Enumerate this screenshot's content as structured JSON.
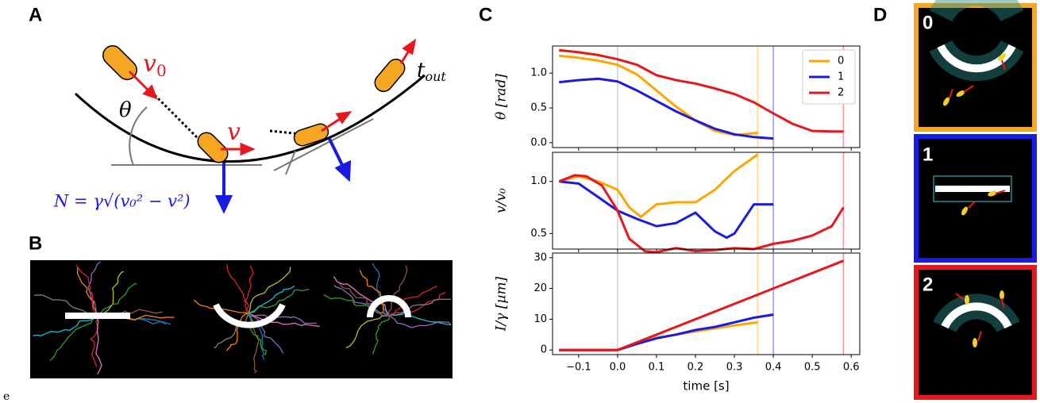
{
  "panels": {
    "A": {
      "letter": "A",
      "v0": {
        "base": "v",
        "sub": "0"
      },
      "theta": "θ",
      "v": "v",
      "tout": {
        "base": "t",
        "sub": "out"
      },
      "normal_force": "N = γ√(v₀² − v²)"
    },
    "B": {
      "letter": "B"
    },
    "C": {
      "letter": "C"
    },
    "D": {
      "letter": "D",
      "labels": [
        "0",
        "1",
        "2"
      ]
    }
  },
  "chart_data": [
    {
      "type": "line",
      "ylabel": "θ [rad]",
      "legend": "upper right",
      "xlim": [
        -0.167,
        0.622
      ],
      "ylim": [
        -0.07,
        1.39
      ],
      "yticks": [
        {
          "value": 0,
          "label": "0.0"
        },
        {
          "value": 0.5,
          "label": "0.5"
        },
        {
          "value": 1,
          "label": "1.0"
        }
      ],
      "vlines": [
        {
          "value": 0,
          "color": "#999999"
        },
        {
          "value": 0.36,
          "color": "#ffa500"
        },
        {
          "value": 0.4,
          "color": "#1a1ae6"
        },
        {
          "value": 0.58,
          "color": "#e6181e"
        }
      ],
      "series": [
        {
          "name": "0",
          "color": "#ffa500",
          "x": [
            -0.15,
            -0.1,
            -0.05,
            0,
            0.05,
            0.1,
            0.15,
            0.2,
            0.25,
            0.3,
            0.36
          ],
          "values": [
            1.25,
            1.22,
            1.18,
            1.12,
            0.98,
            0.75,
            0.52,
            0.32,
            0.17,
            0.11,
            0.14
          ]
        },
        {
          "name": "1",
          "color": "#1a1ae6",
          "x": [
            -0.15,
            -0.1,
            -0.05,
            0,
            0.05,
            0.1,
            0.15,
            0.2,
            0.25,
            0.3,
            0.35,
            0.4
          ],
          "values": [
            0.87,
            0.9,
            0.92,
            0.88,
            0.75,
            0.6,
            0.45,
            0.32,
            0.2,
            0.12,
            0.08,
            0.06
          ]
        },
        {
          "name": "2",
          "color": "#e6181e",
          "x": [
            -0.15,
            -0.1,
            -0.05,
            0,
            0.05,
            0.1,
            0.15,
            0.2,
            0.25,
            0.3,
            0.35,
            0.4,
            0.45,
            0.5,
            0.55,
            0.58
          ],
          "values": [
            1.33,
            1.3,
            1.26,
            1.2,
            1.12,
            0.97,
            0.9,
            0.85,
            0.78,
            0.7,
            0.58,
            0.42,
            0.27,
            0.17,
            0.16,
            0.16
          ]
        }
      ]
    },
    {
      "type": "line",
      "ylabel": "v/v₀",
      "xlim": [
        -0.167,
        0.622
      ],
      "ylim": [
        0.35,
        1.28
      ],
      "yticks": [
        {
          "value": 0.5,
          "label": "0.5"
        },
        {
          "value": 1,
          "label": "1.0"
        }
      ],
      "vlines": [
        {
          "value": 0,
          "color": "#999999"
        },
        {
          "value": 0.36,
          "color": "#ffa500"
        },
        {
          "value": 0.4,
          "color": "#1a1ae6"
        },
        {
          "value": 0.58,
          "color": "#e6181e"
        }
      ],
      "series": [
        {
          "color": "#ffa500",
          "x": [
            -0.15,
            -0.1,
            -0.05,
            0,
            0.03,
            0.06,
            0.1,
            0.15,
            0.2,
            0.25,
            0.3,
            0.36
          ],
          "values": [
            1.0,
            1.05,
            1.0,
            0.92,
            0.75,
            0.66,
            0.78,
            0.8,
            0.8,
            0.92,
            1.1,
            1.26
          ]
        },
        {
          "color": "#1a1ae6",
          "x": [
            -0.15,
            -0.1,
            -0.05,
            0,
            0.05,
            0.1,
            0.15,
            0.2,
            0.25,
            0.28,
            0.3,
            0.35,
            0.4
          ],
          "values": [
            1.0,
            0.98,
            0.85,
            0.72,
            0.64,
            0.57,
            0.6,
            0.7,
            0.52,
            0.46,
            0.5,
            0.78,
            0.78
          ]
        },
        {
          "color": "#e6181e",
          "x": [
            -0.15,
            -0.11,
            -0.08,
            -0.04,
            0,
            0.03,
            0.07,
            0.1,
            0.15,
            0.2,
            0.25,
            0.3,
            0.35,
            0.4,
            0.45,
            0.5,
            0.55,
            0.58
          ],
          "values": [
            1.0,
            1.06,
            1.05,
            0.96,
            0.72,
            0.45,
            0.33,
            0.32,
            0.36,
            0.33,
            0.34,
            0.36,
            0.35,
            0.4,
            0.43,
            0.48,
            0.57,
            0.75
          ]
        }
      ]
    },
    {
      "type": "line",
      "ylabel": "I/γ [µm]",
      "xlabel": "time [s]",
      "xlim": [
        -0.167,
        0.622
      ],
      "ylim": [
        -1.5,
        31.5
      ],
      "xticks": [
        {
          "value": -0.1,
          "label": "−0.1"
        },
        {
          "value": 0,
          "label": "0.0"
        },
        {
          "value": 0.1,
          "label": "0.1"
        },
        {
          "value": 0.2,
          "label": "0.2"
        },
        {
          "value": 0.3,
          "label": "0.3"
        },
        {
          "value": 0.4,
          "label": "0.4"
        },
        {
          "value": 0.5,
          "label": "0.5"
        },
        {
          "value": 0.6,
          "label": "0.6"
        }
      ],
      "yticks": [
        0,
        10,
        20,
        30
      ],
      "vlines": [
        {
          "value": 0,
          "color": "#999999"
        },
        {
          "value": 0.36,
          "color": "#ffa500"
        },
        {
          "value": 0.4,
          "color": "#1a1ae6"
        },
        {
          "value": 0.58,
          "color": "#e6181e"
        }
      ],
      "series": [
        {
          "color": "#ffa500",
          "x": [
            -0.15,
            0,
            0.05,
            0.1,
            0.15,
            0.2,
            0.25,
            0.3,
            0.36
          ],
          "values": [
            0,
            0,
            2,
            4,
            5,
            6,
            7,
            8,
            9
          ]
        },
        {
          "color": "#1a1ae6",
          "x": [
            -0.15,
            0,
            0.05,
            0.1,
            0.15,
            0.2,
            0.25,
            0.3,
            0.35,
            0.4
          ],
          "values": [
            0,
            0,
            2,
            3.8,
            5,
            6.5,
            7.5,
            9,
            10.5,
            11.5
          ]
        },
        {
          "color": "#e6181e",
          "x": [
            -0.15,
            0,
            0.05,
            0.1,
            0.2,
            0.3,
            0.4,
            0.5,
            0.58
          ],
          "values": [
            0,
            0,
            2.5,
            5,
            10,
            15,
            20,
            25,
            29
          ]
        }
      ]
    }
  ],
  "footer": "e"
}
